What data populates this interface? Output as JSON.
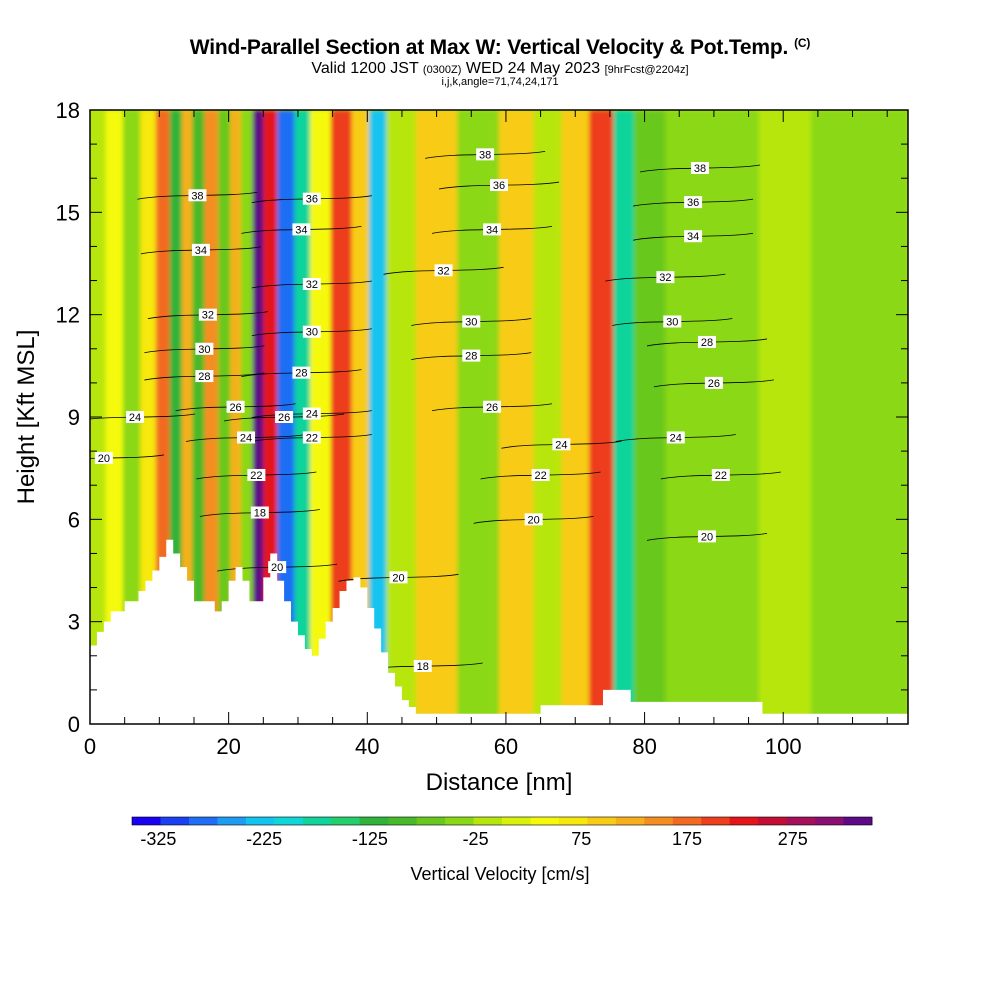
{
  "header": {
    "title": "Wind-Parallel Section at Max W: Vertical Velocity & Pot.Temp.",
    "copyright": "(C)",
    "valid_prefix": "Valid 1200 JST",
    "valid_utc": "(0300Z)",
    "valid_date": "WED 24 May 2023",
    "forecast": "[9hrFcst@2204z]",
    "grid_info": "i,j,k,angle=71,74,24,171"
  },
  "chart_data": {
    "type": "heatmap",
    "xlabel": "Distance [nm]",
    "ylabel": "Height [Kft MSL]",
    "xlim": [
      0,
      118
    ],
    "ylim": [
      0,
      18
    ],
    "x_ticks": [
      0,
      20,
      40,
      60,
      80,
      100
    ],
    "y_ticks": [
      0,
      3,
      6,
      9,
      12,
      15,
      18
    ],
    "x_minor_step": 5,
    "y_minor_step": 1,
    "colorbar": {
      "label": "Vertical Velocity [cm/s]",
      "min": -350,
      "max": 350,
      "step": 25,
      "tick_values": [
        -325,
        -225,
        -125,
        -25,
        75,
        175,
        275
      ],
      "tick_labels": [
        "-325",
        "-225",
        "-125",
        "-25",
        "75",
        "175",
        "275"
      ],
      "colors": [
        "#1a00f2",
        "#1b3ff2",
        "#1f6ef5",
        "#1e9cf2",
        "#13c4f0",
        "#0fd7d7",
        "#10d49a",
        "#23cf6a",
        "#2fb33a",
        "#47b92a",
        "#69c81f",
        "#8ad815",
        "#b7e60c",
        "#d8f20a",
        "#f5fa0a",
        "#f7e80c",
        "#f8cc14",
        "#f7b01c",
        "#f58e21",
        "#f26a22",
        "#ee3e1d",
        "#e3141a",
        "#c40f35",
        "#a5105a",
        "#8a0f73",
        "#5c0a86"
      ]
    },
    "velocity_columns": [
      {
        "x": 1,
        "w": -50,
        "top": 18
      },
      {
        "x": 3.5,
        "w": 20,
        "top": 18
      },
      {
        "x": 6,
        "w": -60,
        "top": 18
      },
      {
        "x": 8.5,
        "w": 40,
        "top": 18
      },
      {
        "x": 10.5,
        "w": 140,
        "top": 18
      },
      {
        "x": 12.5,
        "w": -150,
        "top": 18
      },
      {
        "x": 14,
        "w": 80,
        "top": 18
      },
      {
        "x": 15.5,
        "w": -110,
        "top": 18
      },
      {
        "x": 17.5,
        "w": 110,
        "top": 18
      },
      {
        "x": 19.5,
        "w": -90,
        "top": 18
      },
      {
        "x": 21,
        "w": 90,
        "top": 18
      },
      {
        "x": 22.5,
        "w": -60,
        "top": 18
      },
      {
        "x": 24.5,
        "w": 300,
        "top": 18
      },
      {
        "x": 25.5,
        "w": 180,
        "top": 18
      },
      {
        "x": 28.5,
        "w": -300,
        "top": 18
      },
      {
        "x": 30.5,
        "w": -180,
        "top": 18
      },
      {
        "x": 33,
        "w": 20,
        "top": 18
      },
      {
        "x": 36.5,
        "w": 160,
        "top": 18
      },
      {
        "x": 39,
        "w": 60,
        "top": 18
      },
      {
        "x": 41.5,
        "w": -230,
        "top": 18
      },
      {
        "x": 44,
        "w": -40,
        "top": 18
      },
      {
        "x": 50,
        "w": 60,
        "top": 18
      },
      {
        "x": 56,
        "w": -60,
        "top": 18
      },
      {
        "x": 62,
        "w": 60,
        "top": 18
      },
      {
        "x": 66,
        "w": -40,
        "top": 18
      },
      {
        "x": 70,
        "w": 70,
        "top": 18
      },
      {
        "x": 74,
        "w": 160,
        "top": 18
      },
      {
        "x": 77,
        "w": -190,
        "top": 18
      },
      {
        "x": 80,
        "w": -80,
        "top": 18
      },
      {
        "x": 86,
        "w": -70,
        "top": 18
      },
      {
        "x": 93,
        "w": -60,
        "top": 18
      },
      {
        "x": 100,
        "w": -40,
        "top": 18
      },
      {
        "x": 108,
        "w": -60,
        "top": 18
      },
      {
        "x": 116,
        "w": -60,
        "top": 18
      }
    ],
    "theta_labels": [
      {
        "text": "38",
        "x": 15.5,
        "y": 15.5
      },
      {
        "text": "34",
        "x": 16,
        "y": 13.9
      },
      {
        "text": "32",
        "x": 17,
        "y": 12.0
      },
      {
        "text": "30",
        "x": 16.5,
        "y": 11.0
      },
      {
        "text": "28",
        "x": 16.5,
        "y": 10.2
      },
      {
        "text": "26",
        "x": 21,
        "y": 9.3
      },
      {
        "text": "24",
        "x": 22.5,
        "y": 8.4
      },
      {
        "text": "22",
        "x": 24,
        "y": 7.3
      },
      {
        "text": "18",
        "x": 24.5,
        "y": 6.2
      },
      {
        "text": "20",
        "x": 27,
        "y": 4.6
      },
      {
        "text": "24",
        "x": 6.5,
        "y": 9.0
      },
      {
        "text": "20",
        "x": 2,
        "y": 7.8
      },
      {
        "text": "36",
        "x": 32,
        "y": 15.4
      },
      {
        "text": "34",
        "x": 30.5,
        "y": 14.5
      },
      {
        "text": "32",
        "x": 32,
        "y": 12.9
      },
      {
        "text": "30",
        "x": 32,
        "y": 11.5
      },
      {
        "text": "28",
        "x": 30.5,
        "y": 10.3
      },
      {
        "text": "26",
        "x": 28,
        "y": 9.0
      },
      {
        "text": "24",
        "x": 32,
        "y": 9.1
      },
      {
        "text": "22",
        "x": 32,
        "y": 8.4
      },
      {
        "text": "20",
        "x": 44.5,
        "y": 4.3
      },
      {
        "text": "18",
        "x": 48,
        "y": 1.7
      },
      {
        "text": "38",
        "x": 57,
        "y": 16.7
      },
      {
        "text": "36",
        "x": 59,
        "y": 15.8
      },
      {
        "text": "34",
        "x": 58,
        "y": 14.5
      },
      {
        "text": "32",
        "x": 51,
        "y": 13.3
      },
      {
        "text": "30",
        "x": 55,
        "y": 11.8
      },
      {
        "text": "28",
        "x": 55,
        "y": 10.8
      },
      {
        "text": "26",
        "x": 58,
        "y": 9.3
      },
      {
        "text": "24",
        "x": 68,
        "y": 8.2
      },
      {
        "text": "22",
        "x": 65,
        "y": 7.3
      },
      {
        "text": "20",
        "x": 64,
        "y": 6.0
      },
      {
        "text": "38",
        "x": 88,
        "y": 16.3
      },
      {
        "text": "36",
        "x": 87,
        "y": 15.3
      },
      {
        "text": "34",
        "x": 87,
        "y": 14.3
      },
      {
        "text": "32",
        "x": 83,
        "y": 13.1
      },
      {
        "text": "30",
        "x": 84,
        "y": 11.8
      },
      {
        "text": "28",
        "x": 89,
        "y": 11.2
      },
      {
        "text": "26",
        "x": 90,
        "y": 10.0
      },
      {
        "text": "24",
        "x": 84.5,
        "y": 8.4
      },
      {
        "text": "22",
        "x": 91,
        "y": 7.3
      },
      {
        "text": "20",
        "x": 89,
        "y": 5.5
      }
    ],
    "terrain": [
      [
        0,
        2.3
      ],
      [
        1,
        2.3
      ],
      [
        1,
        2.7
      ],
      [
        2,
        2.7
      ],
      [
        2,
        3.0
      ],
      [
        3,
        3.0
      ],
      [
        3,
        3.3
      ],
      [
        5,
        3.3
      ],
      [
        5,
        3.6
      ],
      [
        7,
        3.6
      ],
      [
        7,
        3.9
      ],
      [
        8,
        3.9
      ],
      [
        8,
        4.2
      ],
      [
        9,
        4.2
      ],
      [
        9,
        4.5
      ],
      [
        10,
        4.5
      ],
      [
        10,
        4.9
      ],
      [
        11,
        4.9
      ],
      [
        11,
        5.4
      ],
      [
        12,
        5.4
      ],
      [
        12,
        5.0
      ],
      [
        13,
        5.0
      ],
      [
        13,
        4.6
      ],
      [
        14,
        4.6
      ],
      [
        14,
        4.2
      ],
      [
        15,
        4.2
      ],
      [
        15,
        3.6
      ],
      [
        18,
        3.6
      ],
      [
        18,
        3.3
      ],
      [
        19,
        3.3
      ],
      [
        19,
        3.6
      ],
      [
        20,
        3.6
      ],
      [
        20,
        4.2
      ],
      [
        21,
        4.2
      ],
      [
        21,
        4.6
      ],
      [
        22,
        4.6
      ],
      [
        22,
        4.2
      ],
      [
        23,
        4.2
      ],
      [
        23,
        3.6
      ],
      [
        25,
        3.6
      ],
      [
        25,
        4.3
      ],
      [
        26,
        4.3
      ],
      [
        26,
        5.0
      ],
      [
        27,
        5.0
      ],
      [
        27,
        4.2
      ],
      [
        28,
        4.2
      ],
      [
        28,
        3.6
      ],
      [
        29,
        3.6
      ],
      [
        29,
        3.0
      ],
      [
        30,
        3.0
      ],
      [
        30,
        2.6
      ],
      [
        31,
        2.6
      ],
      [
        31,
        2.2
      ],
      [
        32,
        2.2
      ],
      [
        32,
        2.0
      ],
      [
        33,
        2.0
      ],
      [
        33,
        2.5
      ],
      [
        34,
        2.5
      ],
      [
        34,
        3.0
      ],
      [
        35,
        3.0
      ],
      [
        35,
        3.4
      ],
      [
        36,
        3.4
      ],
      [
        36,
        3.9
      ],
      [
        37,
        3.9
      ],
      [
        37,
        4.2
      ],
      [
        38,
        4.2
      ],
      [
        38,
        4.3
      ],
      [
        39,
        4.3
      ],
      [
        39,
        4.0
      ],
      [
        40,
        4.0
      ],
      [
        40,
        3.4
      ],
      [
        41,
        3.4
      ],
      [
        41,
        2.8
      ],
      [
        42,
        2.8
      ],
      [
        42,
        2.1
      ],
      [
        43,
        2.1
      ],
      [
        43,
        1.5
      ],
      [
        44,
        1.5
      ],
      [
        44,
        1.1
      ],
      [
        45,
        1.1
      ],
      [
        45,
        0.7
      ],
      [
        46,
        0.7
      ],
      [
        46,
        0.5
      ],
      [
        47,
        0.5
      ],
      [
        47,
        0.3
      ],
      [
        65,
        0.3
      ],
      [
        65,
        0.55
      ],
      [
        74,
        0.55
      ],
      [
        74,
        1.0
      ],
      [
        78,
        1.0
      ],
      [
        78,
        0.65
      ],
      [
        97,
        0.65
      ],
      [
        97,
        0.3
      ],
      [
        118,
        0.3
      ],
      [
        118,
        0
      ],
      [
        0,
        0
      ]
    ]
  }
}
